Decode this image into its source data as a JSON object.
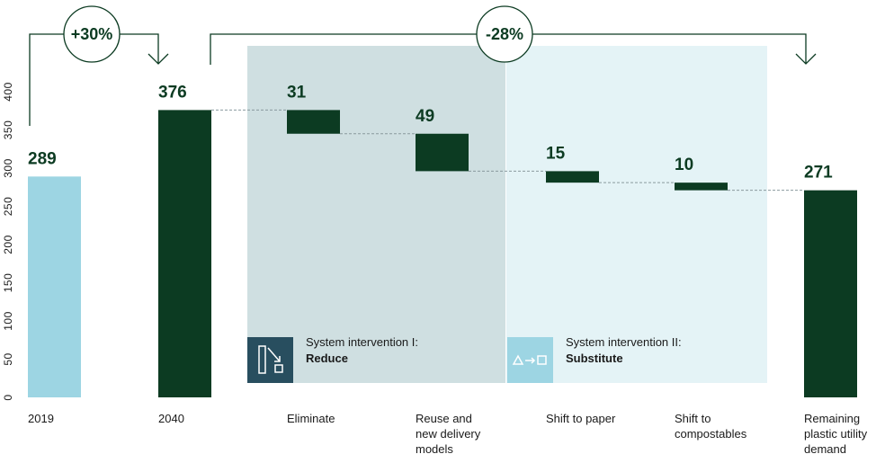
{
  "chart_data": {
    "type": "bar",
    "subtype": "waterfall",
    "categories": [
      "2019",
      "2040",
      "Eliminate",
      "Reuse and new delivery models",
      "Shift to paper",
      "Shift to compostables",
      "Remaining plastic utility demand"
    ],
    "category_lines": [
      [
        "2019"
      ],
      [
        "2040"
      ],
      [
        "Eliminate"
      ],
      [
        "Reuse and",
        "new delivery",
        "models"
      ],
      [
        "Shift to paper"
      ],
      [
        "Shift to",
        "compostables"
      ],
      [
        "Remaining",
        "plastic utility",
        "demand"
      ]
    ],
    "bars": [
      {
        "label": "289",
        "base": 0,
        "top": 289,
        "kind": "total-2019"
      },
      {
        "label": "376",
        "base": 0,
        "top": 376,
        "kind": "total"
      },
      {
        "label": "31",
        "base": 345,
        "top": 376,
        "kind": "delta"
      },
      {
        "label": "49",
        "base": 296,
        "top": 345,
        "kind": "delta"
      },
      {
        "label": "15",
        "base": 281,
        "top": 296,
        "kind": "delta"
      },
      {
        "label": "10",
        "base": 271,
        "top": 281,
        "kind": "delta"
      },
      {
        "label": "271",
        "base": 0,
        "top": 271,
        "kind": "total"
      }
    ],
    "yticks": [
      "0",
      "50",
      "100",
      "150",
      "200",
      "250",
      "300",
      "350",
      "400"
    ],
    "ylim": [
      0,
      400
    ],
    "annotations": {
      "growth": "+30%",
      "reduction": "-28%"
    },
    "groups": [
      {
        "line1": "System intervention I:",
        "line2": "Reduce",
        "color": "#cfdfe1",
        "icon": "reduce-icon"
      },
      {
        "line1": "System intervention II:",
        "line2": "Substitute",
        "color": "#e4f3f6",
        "icon": "substitute-icon"
      }
    ],
    "colors": {
      "bar_2019": "#9dd5e3",
      "bar_dark": "#0c3b22",
      "reduce_icon_bg": "#284e5f",
      "substitute_icon_bg": "#9dd5e3",
      "connector": "#8a9a9e"
    }
  }
}
